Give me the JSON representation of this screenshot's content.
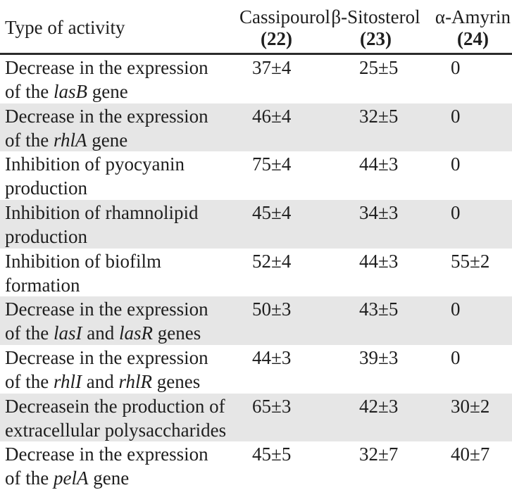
{
  "colors": {
    "row_stripe": "#e6e6e6",
    "header_rule": "#2b2b2b",
    "text": "#1e1e1e",
    "background": "#ffffff"
  },
  "table": {
    "header": {
      "activity_label": "Type of activity",
      "columns": [
        {
          "name": "Cassipourol",
          "id_label": "(22)"
        },
        {
          "name": "β-Sitosterol",
          "id_label": "(23)"
        },
        {
          "name": "α-Amyrin",
          "id_label": "(24)"
        }
      ]
    },
    "rows": [
      {
        "activity": [
          {
            "text": "Decrease in the expression"
          },
          {
            "br": true
          },
          {
            "text": "of the "
          },
          {
            "text": "lasB",
            "italic": true
          },
          {
            "text": " gene"
          }
        ],
        "values": [
          "37±4",
          "25±5",
          "0"
        ]
      },
      {
        "activity": [
          {
            "text": "Decrease in the expression"
          },
          {
            "br": true
          },
          {
            "text": "of the "
          },
          {
            "text": "rhlA",
            "italic": true
          },
          {
            "text": " gene"
          }
        ],
        "values": [
          "46±4",
          "32±5",
          "0"
        ]
      },
      {
        "activity": [
          {
            "text": "Inhibition of pyocyanin"
          },
          {
            "br": true
          },
          {
            "text": "production"
          }
        ],
        "values": [
          "75±4",
          "44±3",
          "0"
        ]
      },
      {
        "activity": [
          {
            "text": "Inhibition of rhamnolipid"
          },
          {
            "br": true
          },
          {
            "text": "production"
          }
        ],
        "values": [
          "45±4",
          "34±3",
          "0"
        ]
      },
      {
        "activity": [
          {
            "text": "Inhibition of biofilm"
          },
          {
            "br": true
          },
          {
            "text": "formation"
          }
        ],
        "values": [
          "52±4",
          "44±3",
          "55±2"
        ]
      },
      {
        "activity": [
          {
            "text": "Decrease in the expression"
          },
          {
            "br": true
          },
          {
            "text": "of the "
          },
          {
            "text": "lasI",
            "italic": true
          },
          {
            "text": " and "
          },
          {
            "text": "lasR",
            "italic": true
          },
          {
            "text": " genes"
          }
        ],
        "values": [
          "50±3",
          "43±5",
          "0"
        ]
      },
      {
        "activity": [
          {
            "text": "Decrease in the expression"
          },
          {
            "br": true
          },
          {
            "text": "of the "
          },
          {
            "text": "rhlI",
            "italic": true
          },
          {
            "text": " and "
          },
          {
            "text": "rhlR",
            "italic": true
          },
          {
            "text": " genes"
          }
        ],
        "values": [
          "44±3",
          "39±3",
          "0"
        ]
      },
      {
        "activity": [
          {
            "text": "Decreasein the production of"
          },
          {
            "br": true
          },
          {
            "text": "extracellular polysaccharides"
          }
        ],
        "values": [
          "65±3",
          "42±3",
          "30±2"
        ]
      },
      {
        "activity": [
          {
            "text": "Decrease in the expression"
          },
          {
            "br": true
          },
          {
            "text": "of the "
          },
          {
            "text": "pelA",
            "italic": true
          },
          {
            "text": " gene"
          }
        ],
        "values": [
          "45±5",
          "32±7",
          "40±7"
        ]
      }
    ]
  }
}
